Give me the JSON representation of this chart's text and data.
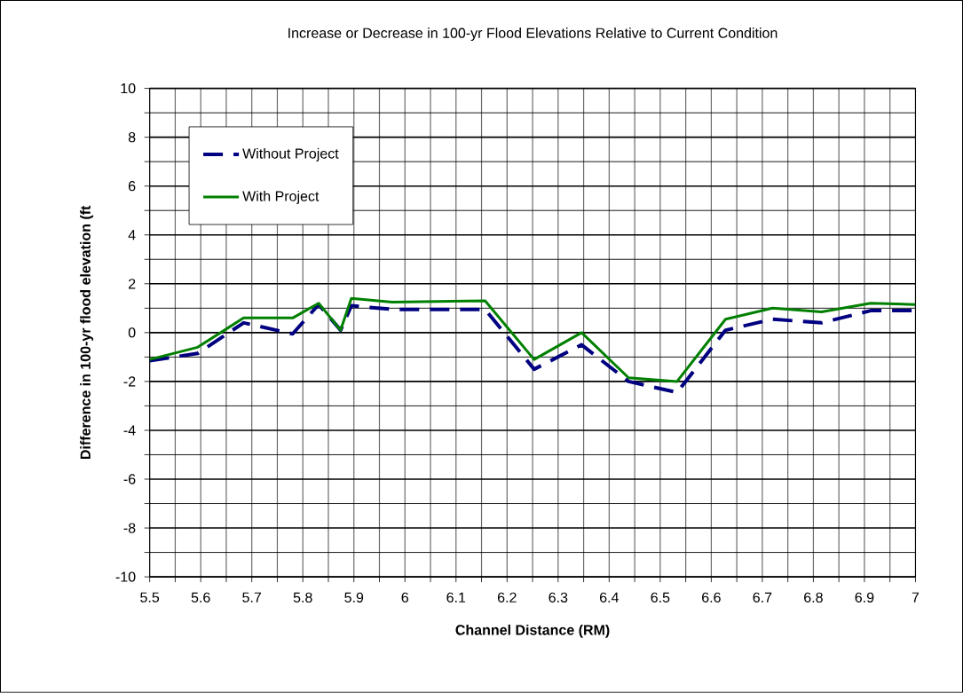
{
  "chart_data": {
    "type": "line",
    "title": "Increase or Decrease in 100-yr Flood Elevations Relative to Current Condition",
    "xlabel": "Channel Distance (RM)",
    "ylabel": "Difference in 100-yr flood elevation (ft",
    "x": [
      5.5,
      5.594,
      5.684,
      5.78,
      5.831,
      5.874,
      5.895,
      5.975,
      6.157,
      6.253,
      6.346,
      6.438,
      6.533,
      6.628,
      6.72,
      6.816,
      6.912,
      7.0
    ],
    "series": [
      {
        "name": "Without Project",
        "color": "#000080",
        "line_style": "dashed",
        "values": [
          -1.15,
          -0.85,
          0.4,
          -0.05,
          1.15,
          0.1,
          1.1,
          0.95,
          0.95,
          -1.5,
          -0.5,
          -2.0,
          -2.45,
          0.1,
          0.55,
          0.4,
          0.9,
          0.9
        ]
      },
      {
        "name": "With Project",
        "color": "#008000",
        "line_style": "solid",
        "values": [
          -1.1,
          -0.6,
          0.6,
          0.6,
          1.2,
          0.1,
          1.4,
          1.25,
          1.3,
          -1.1,
          0.0,
          -1.85,
          -2.0,
          0.55,
          1.0,
          0.85,
          1.2,
          1.15
        ]
      }
    ],
    "xlim": [
      5.5,
      7
    ],
    "ylim": [
      -10,
      10
    ],
    "xticks": [
      5.5,
      5.6,
      5.7,
      5.8,
      5.9,
      6,
      6.1,
      6.2,
      6.3,
      6.4,
      6.5,
      6.6,
      6.7,
      6.8,
      6.9,
      7
    ],
    "yticks": [
      -10,
      -8,
      -6,
      -4,
      -2,
      0,
      2,
      4,
      6,
      8,
      10
    ],
    "grid": true,
    "legend": "top left",
    "marker": "none"
  }
}
